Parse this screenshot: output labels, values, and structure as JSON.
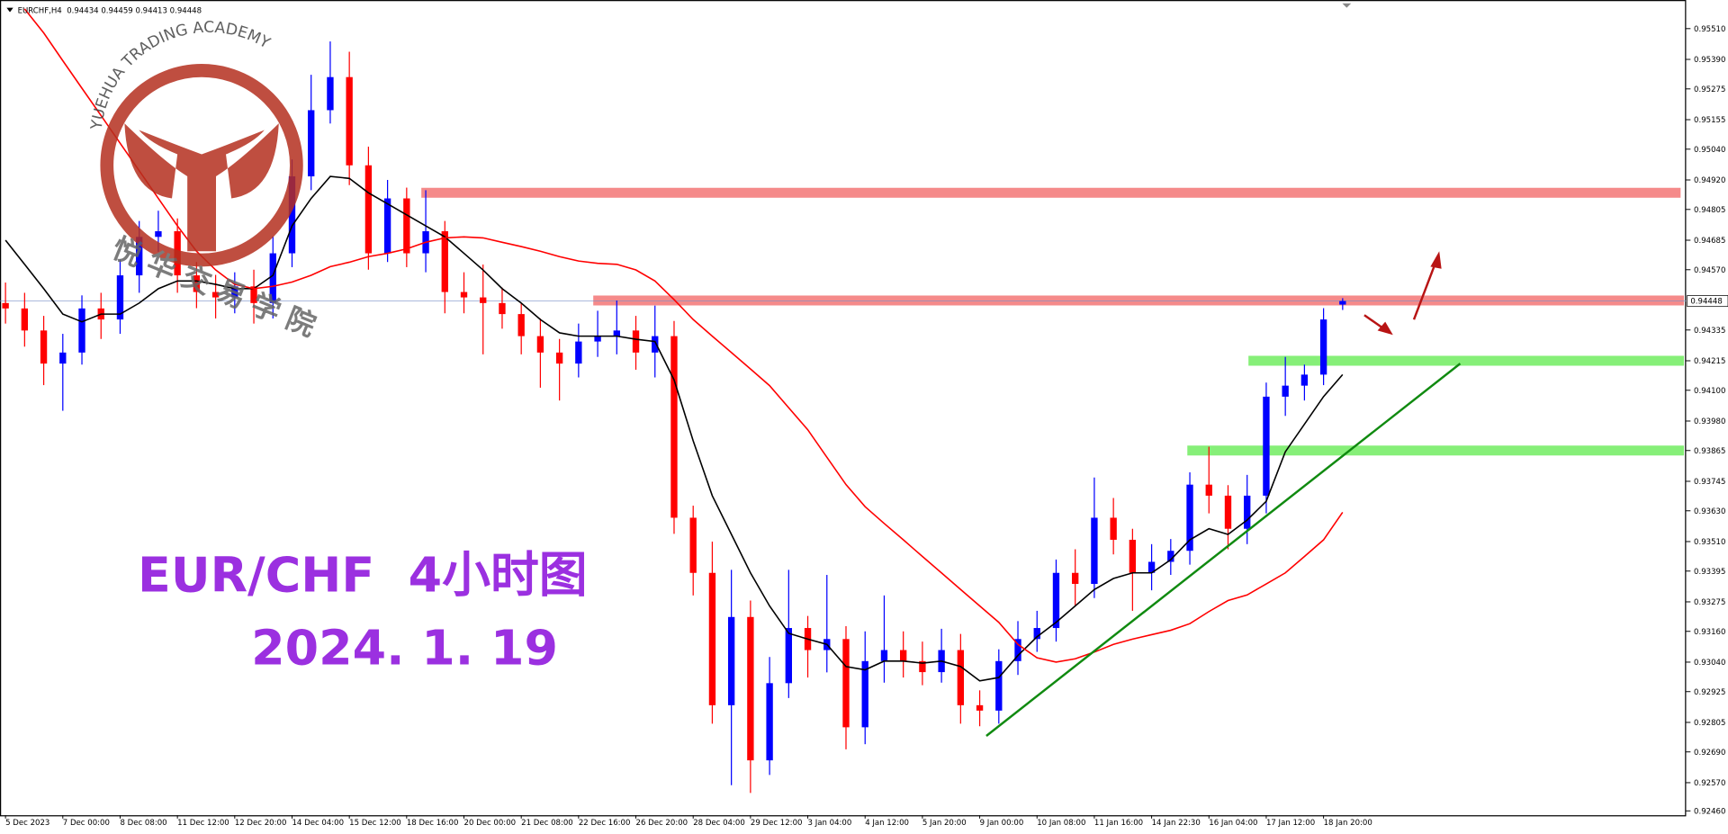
{
  "chart_data": {
    "type": "candlestick",
    "symbol": "EURCHF,H4",
    "title": "EUR/CHF  4小时图",
    "subtitle": "2024. 1. 19",
    "watermark": {
      "en": "YUEHUA TRADING ACADEMY",
      "cn": "悦华交易学院"
    },
    "up_color": "#0000ff",
    "down_color": "#ff0000",
    "categories": [
      "5 Dec 2023",
      null,
      null,
      "7 Dec 00:00",
      null,
      null,
      "8 Dec 08:00",
      null,
      null,
      "11 Dec 12:00",
      null,
      null,
      "12 Dec 20:00",
      null,
      null,
      "14 Dec 04:00",
      null,
      null,
      "15 Dec 12:00",
      null,
      null,
      "18 Dec 16:00",
      null,
      null,
      "20 Dec 00:00",
      null,
      null,
      "21 Dec 08:00",
      null,
      null,
      "22 Dec 16:00",
      null,
      null,
      "26 Dec 20:00",
      null,
      null,
      "28 Dec 04:00",
      null,
      null,
      "29 Dec 12:00",
      null,
      null,
      "3 Jan 04:00",
      null,
      null,
      "4 Jan 12:00",
      null,
      null,
      "5 Jan 20:00",
      null,
      null,
      "9 Jan 00:00",
      null,
      null,
      "10 Jan 08:00",
      null,
      null,
      "11 Jan 16:00",
      null,
      null,
      "14 Jan 22:30",
      null,
      null,
      "16 Jan 04:00",
      null,
      null,
      "17 Jan 12:00",
      null,
      null,
      "18 Jan 20:00",
      null
    ],
    "open": [
      0.9444,
      0.94419,
      0.94333,
      0.94204,
      0.94247,
      0.94419,
      0.94376,
      0.94548,
      0.94698,
      0.9472,
      0.94548,
      0.94483,
      0.94462,
      0.94505,
      0.9444,
      0.94634,
      0.94934,
      0.95192,
      0.95321,
      0.94977,
      0.94634,
      0.94848,
      0.94634,
      0.9472,
      0.94483,
      0.94462,
      0.9444,
      0.94397,
      0.94311,
      0.94247,
      0.94204,
      0.9429,
      0.94311,
      0.94333,
      0.94247,
      0.94311,
      0.93603,
      0.93388,
      0.92872,
      0.93216,
      0.92657,
      0.92958,
      0.93173,
      0.93087,
      0.9313,
      0.92786,
      0.93044,
      0.93087,
      0.93044,
      0.93001,
      0.93087,
      0.92872,
      0.92851,
      0.93044,
      0.9313,
      0.93173,
      0.93388,
      0.93345,
      0.93603,
      0.93517,
      0.93388,
      0.93431,
      0.93474,
      0.93732,
      0.93689,
      0.9356,
      0.93689,
      0.94075,
      0.94118,
      0.94161,
      0.94434
    ],
    "high": [
      0.9452,
      0.9448,
      0.9439,
      0.9432,
      0.9447,
      0.9448,
      0.9461,
      0.9476,
      0.948,
      0.9477,
      0.946,
      0.9455,
      0.9456,
      0.9457,
      0.947,
      0.95,
      0.9533,
      0.9546,
      0.9542,
      0.9505,
      0.9492,
      0.9489,
      0.9488,
      0.9476,
      0.9456,
      0.9459,
      0.945,
      0.9444,
      0.9438,
      0.943,
      0.9436,
      0.9441,
      0.9445,
      0.9439,
      0.9443,
      0.9437,
      0.9365,
      0.9351,
      0.934,
      0.9328,
      0.9306,
      0.934,
      0.9322,
      0.9338,
      0.9318,
      0.9316,
      0.933,
      0.9316,
      0.9312,
      0.9317,
      0.9315,
      0.9293,
      0.9309,
      0.932,
      0.9324,
      0.9344,
      0.9348,
      0.9376,
      0.9368,
      0.9356,
      0.935,
      0.9352,
      0.9378,
      0.9388,
      0.9373,
      0.9377,
      0.9413,
      0.9423,
      0.942,
      0.9442,
      0.94459
    ],
    "low": [
      0.9436,
      0.9427,
      0.9412,
      0.9402,
      0.942,
      0.943,
      0.9432,
      0.9448,
      0.9464,
      0.9448,
      0.9442,
      0.9438,
      0.944,
      0.9436,
      0.9438,
      0.9458,
      0.9488,
      0.9514,
      0.949,
      0.9457,
      0.946,
      0.9458,
      0.9456,
      0.944,
      0.944,
      0.9424,
      0.9434,
      0.9424,
      0.9411,
      0.9406,
      0.9415,
      0.9423,
      0.9424,
      0.9418,
      0.9415,
      0.9354,
      0.933,
      0.928,
      0.9256,
      0.9253,
      0.926,
      0.929,
      0.9298,
      0.93,
      0.927,
      0.9272,
      0.9296,
      0.9298,
      0.9295,
      0.9296,
      0.928,
      0.9279,
      0.928,
      0.9299,
      0.9308,
      0.9312,
      0.9326,
      0.9329,
      0.9346,
      0.9324,
      0.9332,
      0.9338,
      0.9342,
      0.9362,
      0.9348,
      0.935,
      0.9362,
      0.94,
      0.9406,
      0.9412,
      0.94413
    ],
    "close": [
      0.94419,
      0.94333,
      0.94204,
      0.94247,
      0.94419,
      0.94376,
      0.94548,
      0.94698,
      0.9472,
      0.94548,
      0.94483,
      0.94462,
      0.94505,
      0.9444,
      0.94634,
      0.94934,
      0.95192,
      0.95321,
      0.94977,
      0.94634,
      0.94848,
      0.94634,
      0.9472,
      0.94483,
      0.94462,
      0.9444,
      0.94397,
      0.94311,
      0.94247,
      0.94204,
      0.9429,
      0.94311,
      0.94333,
      0.94247,
      0.94311,
      0.93603,
      0.93388,
      0.92872,
      0.93216,
      0.92657,
      0.92958,
      0.93173,
      0.93087,
      0.9313,
      0.92786,
      0.93044,
      0.93087,
      0.93044,
      0.93001,
      0.93087,
      0.92872,
      0.92851,
      0.93044,
      0.9313,
      0.93173,
      0.93388,
      0.93345,
      0.93603,
      0.93517,
      0.93388,
      0.93431,
      0.93474,
      0.93732,
      0.93689,
      0.9356,
      0.93689,
      0.94075,
      0.94118,
      0.94161,
      0.94376,
      0.94448
    ],
    "ma": [
      {
        "color": "#000000",
        "values": [
          0.94685,
          0.94591,
          0.94496,
          0.94397,
          0.94367,
          0.94397,
          0.94397,
          0.9444,
          0.94496,
          0.94526,
          0.94526,
          0.94513,
          0.94496,
          0.94496,
          0.94548,
          0.94741,
          0.94848,
          0.94934,
          0.94926,
          0.9487,
          0.94827,
          0.94784,
          0.94741,
          0.94698,
          0.94634,
          0.94569,
          0.94496,
          0.9444,
          0.94376,
          0.94324,
          0.94311,
          0.94311,
          0.94311,
          0.94299,
          0.9429,
          0.9414,
          0.93903,
          0.93689,
          0.93538,
          0.93388,
          0.93259,
          0.93152,
          0.9313,
          0.93109,
          0.93023,
          0.9301,
          0.93044,
          0.93044,
          0.93036,
          0.93044,
          0.93023,
          0.92967,
          0.9298,
          0.93066,
          0.93139,
          0.93195,
          0.93259,
          0.93323,
          0.93366,
          0.93388,
          0.93388,
          0.93439,
          0.93517,
          0.9356,
          0.93538,
          0.93594,
          0.93667,
          0.9386,
          0.93968,
          0.94075,
          0.94161
        ]
      },
      {
        "color": "#ff0000",
        "values": [
          null,
          0.95587,
          0.95493,
          0.95385,
          0.95278,
          0.95171,
          0.95063,
          0.94956,
          0.94848,
          0.94741,
          0.94642,
          0.94569,
          0.94513,
          0.94496,
          0.94505,
          0.94522,
          0.94548,
          0.94582,
          0.94599,
          0.94621,
          0.94634,
          0.94651,
          0.94677,
          0.94694,
          0.94698,
          0.94694,
          0.94677,
          0.9466,
          0.94642,
          0.94621,
          0.94604,
          0.94595,
          0.94591,
          0.94569,
          0.94526,
          0.94453,
          0.94376,
          0.94311,
          0.94247,
          0.94183,
          0.94118,
          0.94032,
          0.93946,
          0.93839,
          0.93732,
          0.93646,
          0.93581,
          0.93517,
          0.93452,
          0.93388,
          0.93323,
          0.93259,
          0.93195,
          0.93109,
          0.93057,
          0.9304,
          0.93053,
          0.93079,
          0.93109,
          0.9313,
          0.93147,
          0.93164,
          0.9319,
          0.93237,
          0.9328,
          0.93302,
          0.93345,
          0.93388,
          0.93452,
          0.93517,
          0.93624
        ]
      }
    ],
    "levels": [
      {
        "value": 0.9487,
        "color": "#f58a8a"
      },
      {
        "value": 0.9445,
        "color": "#f58a8a"
      },
      {
        "value": 0.94215,
        "color": "#86ef78"
      },
      {
        "value": 0.93865,
        "color": "#86ef78"
      }
    ],
    "ylim": [
      0.92443,
      0.956
    ],
    "yticks": [
      {
        "value": 0.9551,
        "label": "0.95510"
      },
      {
        "value": 0.9539,
        "label": "0.95390"
      },
      0.95275,
      0.95155,
      {
        "value": 0.9504,
        "label": "0.95040"
      },
      {
        "value": 0.9492,
        "label": "0.94920"
      },
      0.94805,
      0.94685,
      {
        "value": 0.9457,
        "label": "0.94570"
      },
      0.94335,
      0.94215,
      {
        "value": 0.941,
        "label": "0.94100"
      },
      {
        "value": 0.9398,
        "label": "0.93980"
      },
      0.93865,
      0.93745,
      {
        "value": 0.9363,
        "label": "0.93630"
      },
      {
        "value": 0.9351,
        "label": "0.93510"
      },
      0.93395,
      0.93275,
      {
        "value": 0.9316,
        "label": "0.93160"
      },
      {
        "value": 0.9304,
        "label": "0.93040"
      },
      0.92925,
      0.92805,
      {
        "value": 0.9269,
        "label": "0.92690"
      },
      {
        "value": 0.9257,
        "label": "0.92570"
      },
      {
        "value": 0.9246,
        "label": "0.92460"
      }
    ]
  }
}
